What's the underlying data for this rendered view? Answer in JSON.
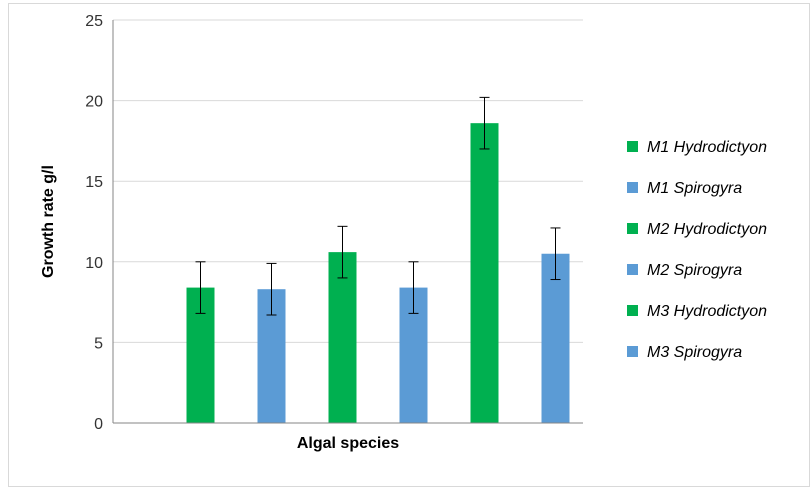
{
  "chart_data": {
    "type": "bar",
    "title": "",
    "xlabel": "Algal species",
    "ylabel": "Growth rate g/l",
    "ylim": [
      0,
      25
    ],
    "yticks": [
      0,
      5,
      10,
      15,
      20,
      25
    ],
    "grid": true,
    "legend_position": "right",
    "series": [
      {
        "name": "M1 Hydrodictyon",
        "value": 8.4,
        "error": 1.6,
        "color": "#00b050"
      },
      {
        "name": "M1 Spirogyra",
        "value": 8.3,
        "error": 1.6,
        "color": "#5b9bd5"
      },
      {
        "name": "M2 Hydrodictyon",
        "value": 10.6,
        "error": 1.6,
        "color": "#00b050"
      },
      {
        "name": "M2 Spirogyra",
        "value": 8.4,
        "error": 1.6,
        "color": "#5b9bd5"
      },
      {
        "name": "M3 Hydrodictyon",
        "value": 18.6,
        "error": 1.6,
        "color": "#00b050"
      },
      {
        "name": "M3 Spirogyra",
        "value": 10.5,
        "error": 1.6,
        "color": "#5b9bd5"
      }
    ]
  }
}
